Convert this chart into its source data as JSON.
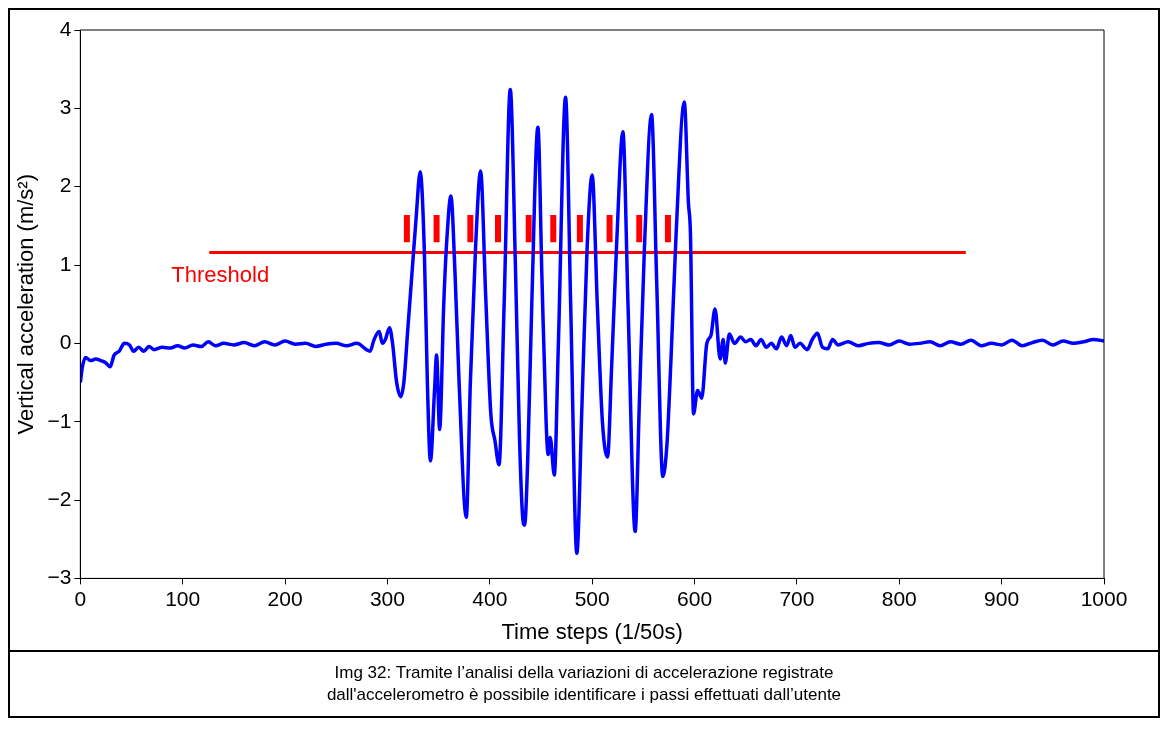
{
  "chart_data": {
    "type": "line",
    "xlabel": "Time steps (1/50s)",
    "ylabel": "Vertical acceleration (m/s²)",
    "xlim": [
      0,
      1000
    ],
    "xticks": [
      0,
      100,
      200,
      300,
      400,
      500,
      600,
      700,
      800,
      900,
      1000
    ],
    "ylim": [
      -3,
      4
    ],
    "yticks": [
      {
        "value": -3,
        "label": "−3"
      },
      {
        "value": -2,
        "label": "−2"
      },
      {
        "value": -1,
        "label": "−1"
      },
      0,
      1,
      2,
      3,
      4
    ],
    "grid": false,
    "legend": false,
    "marker": "none",
    "line_style": "solid",
    "annotations": [
      "Img 32: Tramite l’analisi della variazioni di accelerazione registrate dall'accelerometro è possibile identificare i passi effettuati dall’utente"
    ],
    "series": [
      {
        "color": "#0000ff",
        "x": [
          0,
          2,
          5,
          10,
          15,
          20,
          25,
          29,
          33,
          38,
          43,
          48,
          52,
          57,
          62,
          67,
          72,
          80,
          88,
          95,
          102,
          110,
          118,
          125,
          132,
          140,
          150,
          160,
          170,
          180,
          190,
          200,
          210,
          220,
          230,
          240,
          250,
          260,
          270,
          283,
          287,
          292,
          295,
          298,
          302,
          305,
          309,
          313,
          316,
          320,
          324,
          328,
          332,
          336,
          339,
          342,
          346,
          348,
          351,
          355,
          358,
          362,
          366,
          370,
          377,
          381,
          386,
          391,
          396,
          401,
          405,
          409,
          414,
          420,
          425,
          429,
          432,
          434,
          437,
          441,
          447,
          451,
          455,
          457,
          459,
          463,
          467,
          474,
          479,
          485,
          490,
          495,
          500,
          505,
          510,
          515,
          519,
          524,
          530,
          535,
          542,
          546,
          551,
          558,
          563,
          569,
          573,
          577,
          582,
          590,
          594,
          596,
          599,
          603,
          607,
          612,
          616,
          620,
          625,
          628,
          630,
          634,
          639,
          645,
          650,
          655,
          660,
          665,
          670,
          675,
          680,
          685,
          690,
          694,
          698,
          703,
          710,
          715,
          720,
          725,
          730,
          735,
          740,
          750,
          760,
          770,
          780,
          790,
          800,
          810,
          820,
          830,
          840,
          850,
          860,
          870,
          880,
          890,
          900,
          910,
          920,
          930,
          940,
          950,
          960,
          970,
          980,
          990,
          1000
        ],
        "values": [
          -0.5,
          -0.3,
          -0.18,
          -0.22,
          -0.2,
          -0.22,
          -0.25,
          -0.3,
          -0.15,
          -0.1,
          0.0,
          -0.02,
          -0.1,
          -0.05,
          -0.1,
          -0.04,
          -0.08,
          -0.05,
          -0.06,
          -0.03,
          -0.06,
          -0.02,
          -0.04,
          0.02,
          -0.03,
          0.0,
          -0.02,
          0.01,
          -0.03,
          0.02,
          -0.02,
          0.03,
          -0.01,
          0.0,
          -0.04,
          -0.01,
          0.0,
          -0.03,
          0.0,
          -0.1,
          0.05,
          0.15,
          0.0,
          0.05,
          0.2,
          0.0,
          -0.5,
          -0.68,
          -0.5,
          0.2,
          0.9,
          1.6,
          2.19,
          1.2,
          -0.5,
          -1.5,
          -0.6,
          -0.15,
          -1.1,
          0.5,
          1.32,
          1.88,
          0.9,
          -0.5,
          -2.22,
          -0.5,
          1.2,
          2.2,
          0.6,
          -0.9,
          -1.24,
          -1.55,
          0.5,
          3.24,
          1.0,
          -1.2,
          -2.2,
          -2.32,
          -1.5,
          0.5,
          2.76,
          0.8,
          -1.0,
          -1.42,
          -1.2,
          -1.68,
          0.0,
          3.14,
          0.5,
          -2.68,
          -0.8,
          1.2,
          2.15,
          0.5,
          -1.0,
          -1.45,
          -0.3,
          1.3,
          2.7,
          0.5,
          -2.4,
          -0.8,
          1.2,
          2.92,
          0.8,
          -1.7,
          -1.3,
          -0.2,
          1.4,
          3.08,
          1.8,
          1.4,
          -0.9,
          -0.6,
          -0.7,
          0.0,
          0.1,
          0.44,
          -0.2,
          0.05,
          -0.25,
          0.12,
          0.0,
          0.08,
          0.02,
          0.05,
          -0.03,
          0.05,
          -0.05,
          0.0,
          -0.07,
          0.08,
          -0.03,
          0.1,
          -0.05,
          0.0,
          -0.08,
          0.05,
          0.13,
          -0.05,
          -0.07,
          0.05,
          -0.02,
          0.02,
          -0.03,
          0.0,
          0.01,
          -0.02,
          0.03,
          -0.01,
          0.0,
          0.02,
          -0.03,
          0.02,
          -0.01,
          0.04,
          -0.03,
          0.0,
          -0.02,
          0.04,
          -0.03,
          0.01,
          0.04,
          -0.02,
          0.03,
          0.0,
          0.02,
          0.05,
          0.03
        ]
      },
      {
        "name": "Threshold",
        "color": "#ff0000",
        "x": [
          126,
          865
        ],
        "values": [
          1.16,
          1.16
        ]
      },
      {
        "color": "#ff0000",
        "x": [
          319,
          319,
          333,
          348,
          348,
          364,
          381,
          381,
          395,
          408,
          408,
          423,
          438,
          438,
          450,
          462,
          462,
          475,
          488,
          488,
          502,
          517,
          517,
          531,
          546,
          546,
          560,
          574,
          574
        ],
        "values": [
          1.29,
          1.64,
          null,
          1.29,
          1.64,
          null,
          1.29,
          1.64,
          null,
          1.29,
          1.64,
          null,
          1.29,
          1.64,
          null,
          1.29,
          1.64,
          null,
          1.29,
          1.64,
          null,
          1.29,
          1.64,
          null,
          1.29,
          1.64,
          null,
          1.29,
          1.64
        ]
      }
    ]
  }
}
